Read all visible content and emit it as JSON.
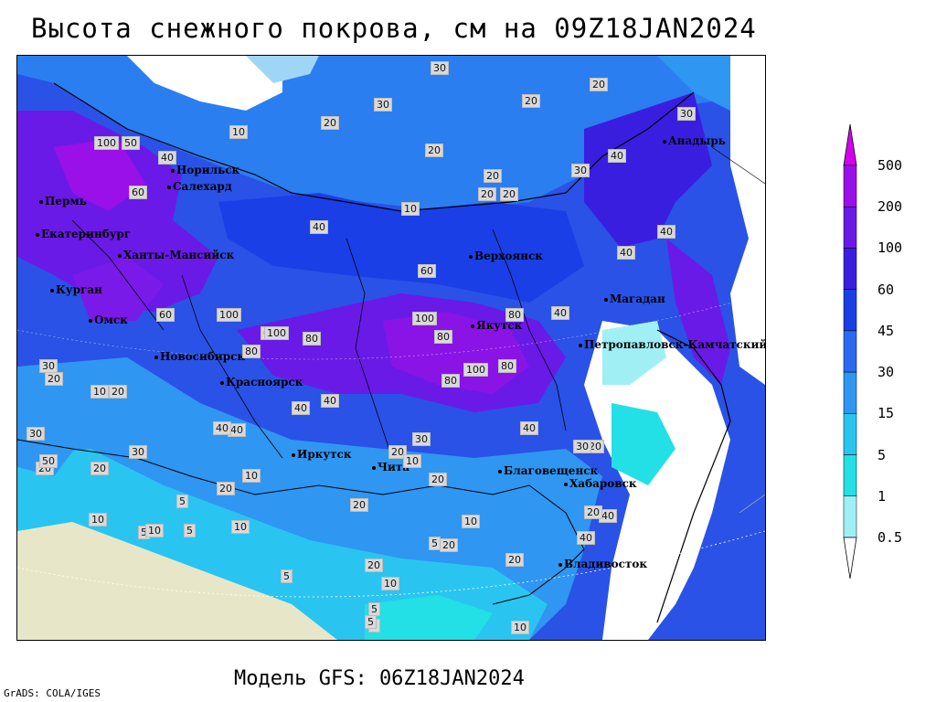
{
  "title": "Высота снежного покрова, см на 09Z18JAN2024",
  "subtitle": "Модель GFS: 06Z18JAN2024",
  "credit": "GrADS: COLA/IGES",
  "legend": {
    "levels": [
      "500",
      "200",
      "100",
      "60",
      "45",
      "30",
      "15",
      "5",
      "1",
      "0.5"
    ],
    "colors": [
      "#d400f0",
      "#9a10e8",
      "#6a1ae6",
      "#3a1ee0",
      "#1a3fe6",
      "#2a6af0",
      "#2f96f2",
      "#29c5f0",
      "#22e0e6",
      "#9feff5",
      "#ffffff"
    ]
  },
  "cities": [
    {
      "name": "Анадырь"
    },
    {
      "name": "Норильск"
    },
    {
      "name": "Салехард"
    },
    {
      "name": "Пермь"
    },
    {
      "name": "Екатеринбург"
    },
    {
      "name": "Ханты-Мансийск"
    },
    {
      "name": "Верхоянск"
    },
    {
      "name": "Магадан"
    },
    {
      "name": "Курган"
    },
    {
      "name": "Омск"
    },
    {
      "name": "Якутск"
    },
    {
      "name": "Петропавловск-Камчатский"
    },
    {
      "name": "Новосибирск"
    },
    {
      "name": "Красноярск"
    },
    {
      "name": "Иркутск"
    },
    {
      "name": "Чита"
    },
    {
      "name": "Благовещенск"
    },
    {
      "name": "Хабаровск"
    },
    {
      "name": "Владивосток"
    }
  ],
  "contour_labels": [
    "30",
    "20",
    "20",
    "30",
    "30",
    "20",
    "20",
    "10",
    "20",
    "100",
    "50",
    "40",
    "10",
    "20",
    "20",
    "30",
    "60",
    "40",
    "40",
    "40",
    "40",
    "40",
    "60",
    "100",
    "80",
    "60",
    "100",
    "80",
    "60",
    "80",
    "80",
    "100",
    "80",
    "100",
    "80",
    "30",
    "20",
    "10",
    "20",
    "40",
    "40",
    "40",
    "40",
    "30",
    "40",
    "20",
    "20",
    "10",
    "30",
    "20",
    "20",
    "10",
    "5",
    "10",
    "20",
    "5",
    "10",
    "10",
    "5",
    "40",
    "20",
    "20",
    "5",
    "40",
    "30",
    "20",
    "50",
    "20",
    "5",
    "10",
    "5",
    "10",
    "30",
    "20",
    "5",
    "5",
    "10",
    "20"
  ]
}
